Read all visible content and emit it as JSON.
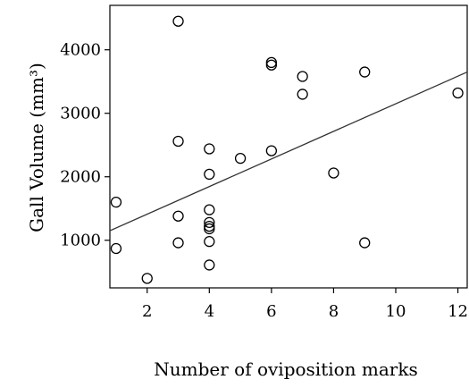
{
  "chart_data": {
    "type": "scatter",
    "xlabel": "Number of oviposition marks",
    "ylabel": "Gall Volume (mm³)",
    "xlim": [
      0.8,
      12.3
    ],
    "ylim": [
      250,
      4700
    ],
    "x_ticks": [
      2,
      4,
      6,
      8,
      10,
      12
    ],
    "y_ticks": [
      1000,
      2000,
      3000,
      4000
    ],
    "x_tick_labels": [
      "2",
      "4",
      "6",
      "8",
      "10",
      "12"
    ],
    "y_tick_labels": [
      "1000",
      "2000",
      "3000",
      "4000"
    ],
    "grid": false,
    "legend": "none",
    "marker": "open-circle",
    "points": [
      {
        "x": 1,
        "y": 1600
      },
      {
        "x": 1,
        "y": 870
      },
      {
        "x": 2,
        "y": 400
      },
      {
        "x": 3,
        "y": 4450
      },
      {
        "x": 3,
        "y": 2560
      },
      {
        "x": 3,
        "y": 1380
      },
      {
        "x": 3,
        "y": 960
      },
      {
        "x": 4,
        "y": 2440
      },
      {
        "x": 4,
        "y": 2040
      },
      {
        "x": 4,
        "y": 1480
      },
      {
        "x": 4,
        "y": 1280
      },
      {
        "x": 4,
        "y": 1220
      },
      {
        "x": 4,
        "y": 1180
      },
      {
        "x": 4,
        "y": 980
      },
      {
        "x": 4,
        "y": 610
      },
      {
        "x": 5,
        "y": 2290
      },
      {
        "x": 6,
        "y": 3800
      },
      {
        "x": 6,
        "y": 3760
      },
      {
        "x": 6,
        "y": 2410
      },
      {
        "x": 7,
        "y": 3580
      },
      {
        "x": 7,
        "y": 3300
      },
      {
        "x": 8,
        "y": 2060
      },
      {
        "x": 9,
        "y": 3650
      },
      {
        "x": 9,
        "y": 960
      },
      {
        "x": 12,
        "y": 3320
      }
    ],
    "fit_line": {
      "x0": 0.8,
      "y0": 1150,
      "x1": 12.3,
      "y1": 3650
    },
    "colors": {
      "marker": "#000000",
      "line": "#333333",
      "axes": "#000000",
      "background": "#ffffff"
    }
  }
}
